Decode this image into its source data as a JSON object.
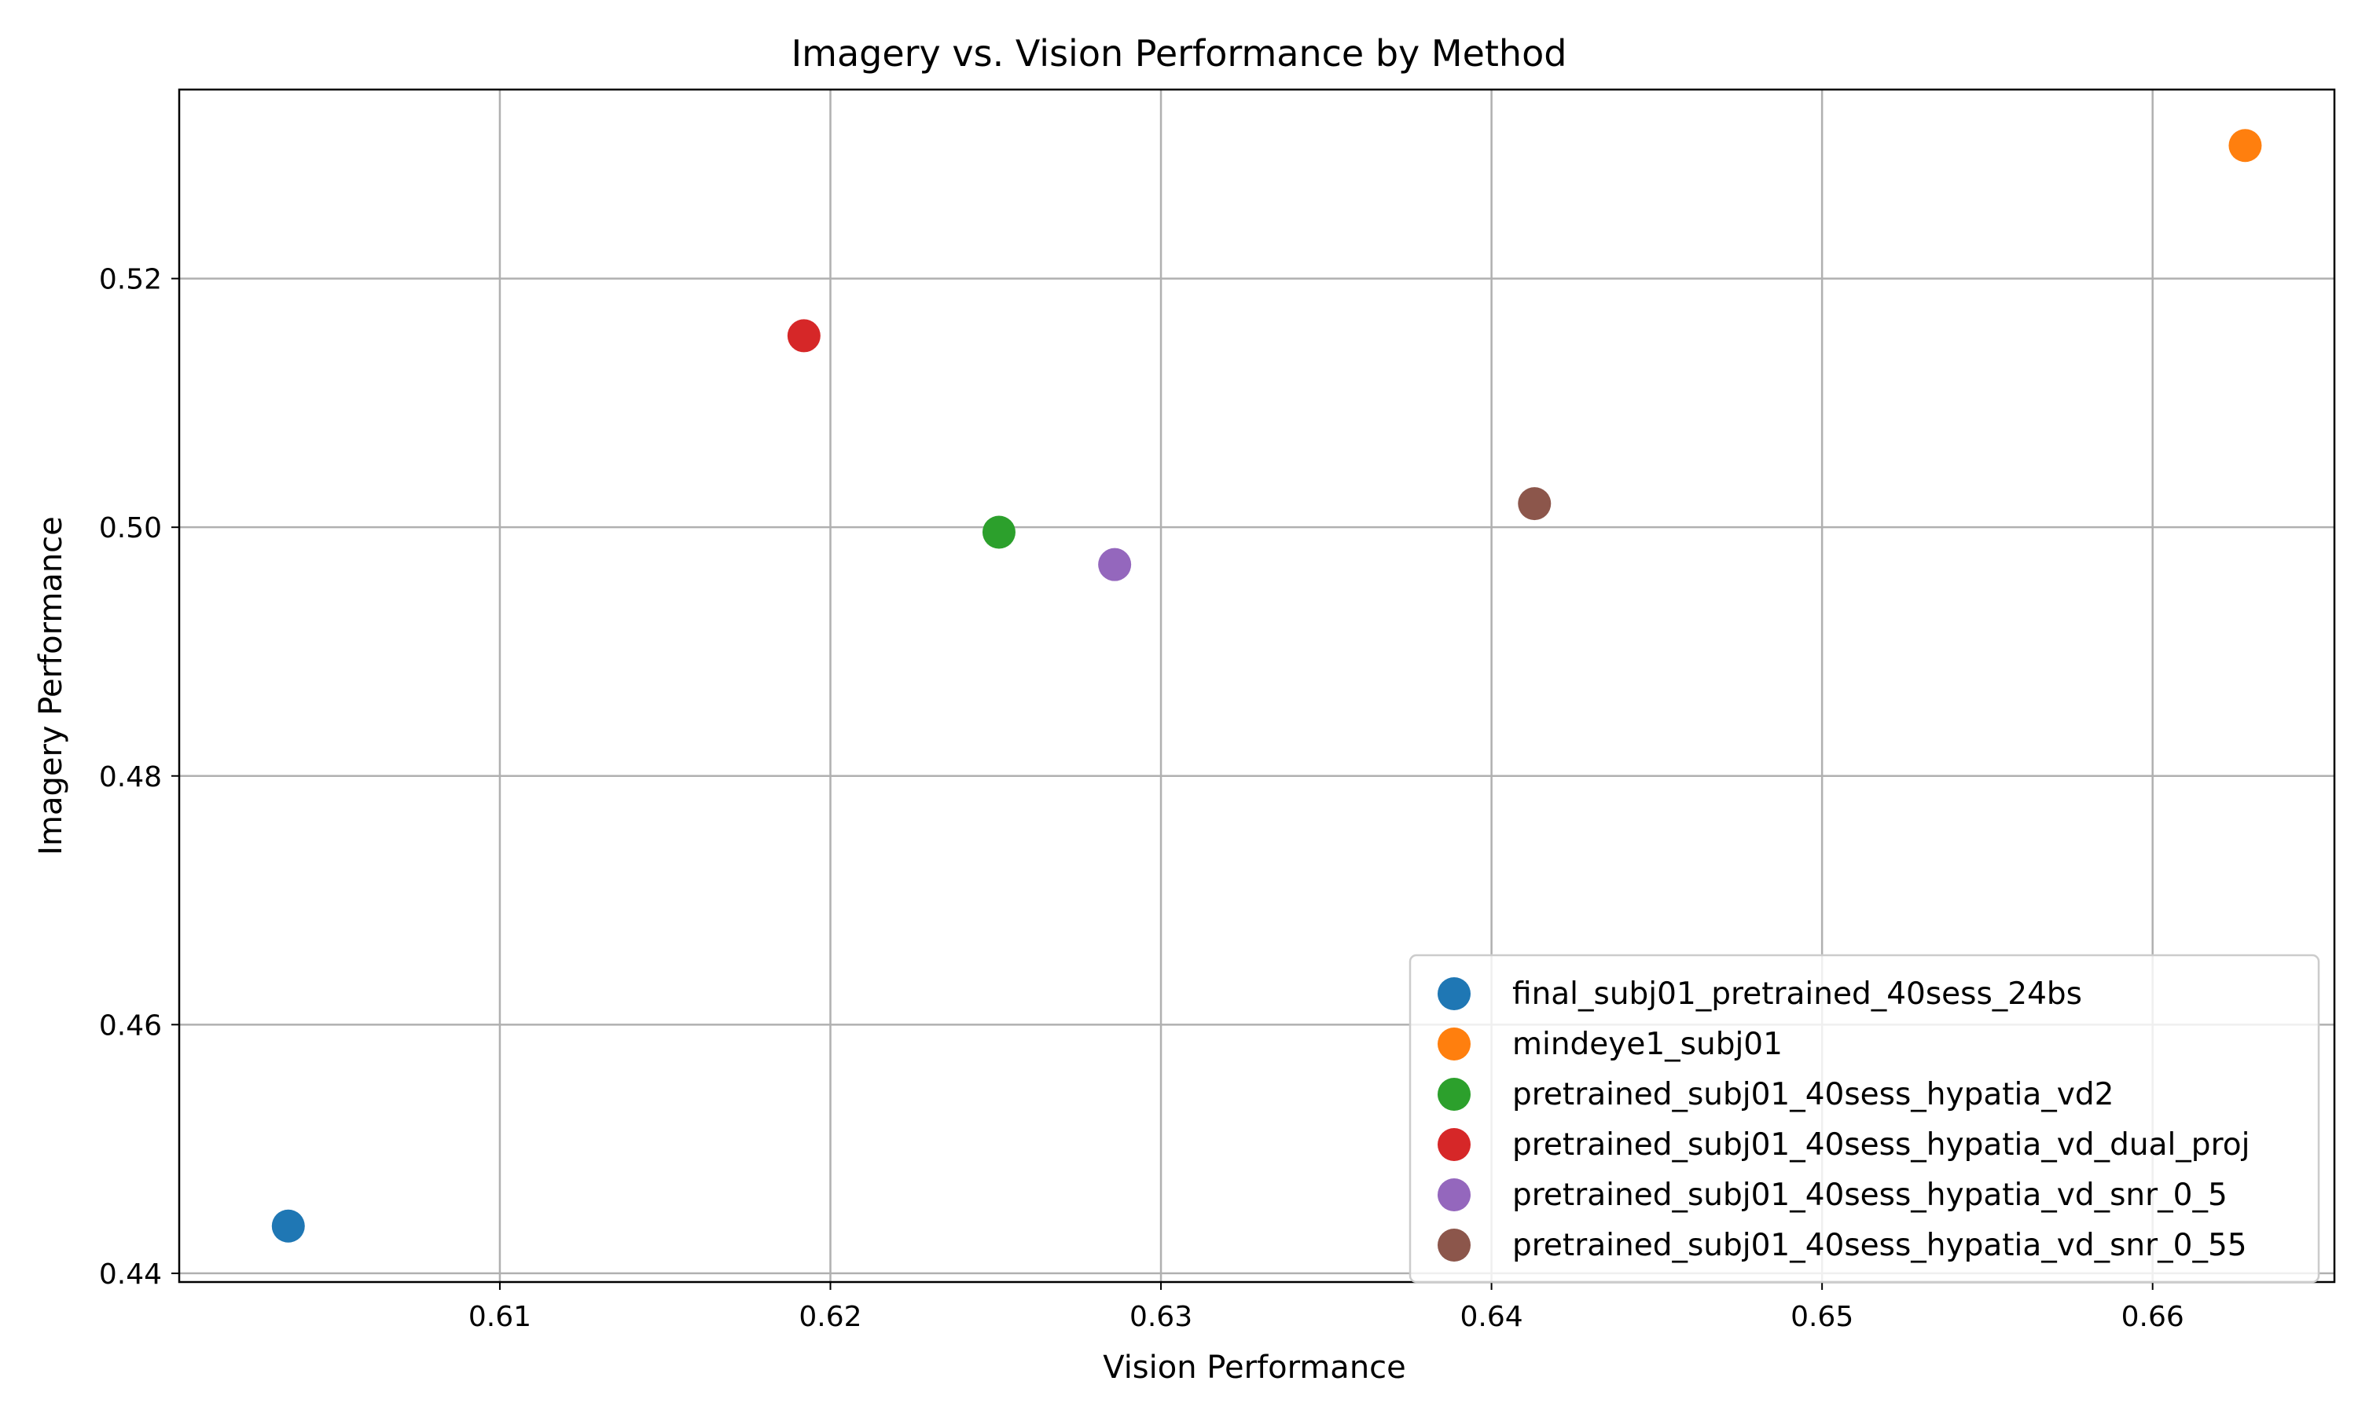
{
  "chart_data": {
    "type": "scatter",
    "title": "Imagery vs. Vision Performance by Method",
    "xlabel": "Vision Performance",
    "ylabel": "Imagery Performance",
    "xlim": [
      0.6003,
      0.6655
    ],
    "ylim": [
      0.4393,
      0.5352
    ],
    "xticks": [
      0.61,
      0.62,
      0.63,
      0.64,
      0.65,
      0.66
    ],
    "xtick_labels": [
      "0.61",
      "0.62",
      "0.63",
      "0.64",
      "0.65",
      "0.66"
    ],
    "yticks": [
      0.44,
      0.46,
      0.48,
      0.5,
      0.52
    ],
    "ytick_labels": [
      "0.44",
      "0.46",
      "0.48",
      "0.50",
      "0.52"
    ],
    "grid": true,
    "legend_position": "bottom-right",
    "series": [
      {
        "name": "final_subj01_pretrained_40sess_24bs",
        "color": "#1f77b4",
        "x": 0.6036,
        "y": 0.4438
      },
      {
        "name": "mindeye1_subj01",
        "color": "#ff7f0e",
        "x": 0.6628,
        "y": 0.5307
      },
      {
        "name": "pretrained_subj01_40sess_hypatia_vd2",
        "color": "#2ca02c",
        "x": 0.6251,
        "y": 0.4996
      },
      {
        "name": "pretrained_subj01_40sess_hypatia_vd_dual_proj",
        "color": "#d62728",
        "x": 0.6192,
        "y": 0.5154
      },
      {
        "name": "pretrained_subj01_40sess_hypatia_vd_snr_0_5",
        "color": "#9467bd",
        "x": 0.6286,
        "y": 0.497
      },
      {
        "name": "pretrained_subj01_40sess_hypatia_vd_snr_0_55",
        "color": "#8c564b",
        "x": 0.6413,
        "y": 0.5019
      }
    ]
  }
}
